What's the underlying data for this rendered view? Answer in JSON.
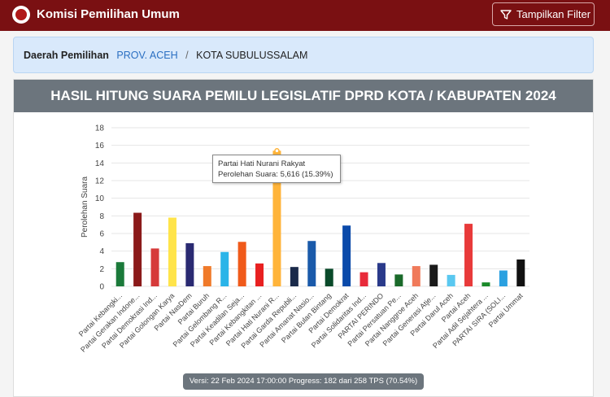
{
  "header": {
    "app_title": "Komisi Pemilihan Umum",
    "filter_label": "Tampilkan Filter"
  },
  "breadcrumb": {
    "lead": "Daerah Pemilihan",
    "province": "PROV. ACEH",
    "separator": "/",
    "city": "KOTA SUBULUSSALAM"
  },
  "panel": {
    "title": "HASIL HITUNG SUARA PEMILU LEGISLATIF DPRD KOTA / KABUPATEN 2024"
  },
  "tooltip": {
    "name": "Partai Hati Nurani Rakyat",
    "value": "Perolehan Suara: 5,616 (15.39%)"
  },
  "version": "Versi: 22 Feb 2024 17:00:00 Progress: 182 dari 258 TPS (70.54%)",
  "chart_data": {
    "type": "bar",
    "ylabel": "Perolehan Suara",
    "ylim": [
      0,
      18
    ],
    "yticks": [
      "0",
      "2",
      "4",
      "6",
      "8",
      "10",
      "12",
      "14",
      "16",
      "18"
    ],
    "grid": true,
    "categories": [
      "Partai Kebangki...",
      "Partai Gerakan Indone...",
      "Partai Demokrasi Ind...",
      "Partai Golongan Karya",
      "Partai NasDem",
      "Partai Buruh",
      "Partai Gelombang R...",
      "Partai Keadilan Seja...",
      "Partai Kebangkitan ...",
      "Partai Hati Nurani R...",
      "Partai Garda Republi...",
      "Partai Amanat Nasio...",
      "Partai Bulan Bintang",
      "Partai Demokrat",
      "Partai Solidaritas Ind...",
      "PARTAI PERINDO",
      "Partai Persatuan Pe...",
      "Partai Nanggroe Aceh",
      "Partai Generasi Atje...",
      "Partai Darul Aceh",
      "Partai Aceh",
      "Partai Adil Sejahtera ...",
      "PARTAI SIRA (SOLI...",
      "Partai Ummat"
    ],
    "values": [
      2.75,
      8.35,
      4.3,
      7.8,
      4.9,
      2.3,
      3.9,
      5.05,
      2.6,
      15.39,
      2.2,
      5.15,
      2.0,
      6.9,
      1.6,
      2.65,
      1.35,
      2.3,
      2.45,
      1.3,
      7.1,
      0.45,
      1.8,
      3.05
    ],
    "colors": [
      "#1b7a3a",
      "#8b1a1a",
      "#d63a3a",
      "#ffe44a",
      "#2a2a72",
      "#f07a2a",
      "#2ab4e8",
      "#f05a1a",
      "#e82020",
      "#ffb43a",
      "#1a2a4a",
      "#1a5aaa",
      "#0a4a2a",
      "#0a4aaa",
      "#e82a3a",
      "#2a3a8a",
      "#1a6a2a",
      "#f07a5a",
      "#1a1a1a",
      "#5ac8f0",
      "#e83a3a",
      "#1a8a2a",
      "#2aa0e0",
      "#111111"
    ],
    "highlight_index": 9
  }
}
